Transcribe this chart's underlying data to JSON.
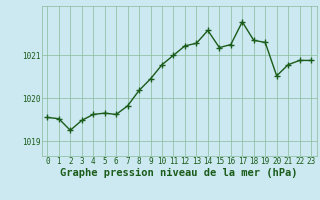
{
  "x": [
    0,
    1,
    2,
    3,
    4,
    5,
    6,
    7,
    8,
    9,
    10,
    11,
    12,
    13,
    14,
    15,
    16,
    17,
    18,
    19,
    20,
    21,
    22,
    23
  ],
  "y": [
    1019.55,
    1019.52,
    1019.25,
    1019.48,
    1019.62,
    1019.65,
    1019.62,
    1019.82,
    1020.18,
    1020.45,
    1020.78,
    1021.0,
    1021.22,
    1021.28,
    1021.58,
    1021.18,
    1021.25,
    1021.78,
    1021.35,
    1021.3,
    1020.52,
    1020.78,
    1020.88,
    1020.88
  ],
  "line_color": "#1a5c1a",
  "marker": "+",
  "marker_size": 4,
  "marker_linewidth": 1.0,
  "bg_color": "#cce8f0",
  "grid_color": "#88bb99",
  "ylabel_ticks": [
    1019,
    1020,
    1021
  ],
  "ylim": [
    1018.65,
    1022.15
  ],
  "xlim": [
    -0.5,
    23.5
  ],
  "xticks": [
    0,
    1,
    2,
    3,
    4,
    5,
    6,
    7,
    8,
    9,
    10,
    11,
    12,
    13,
    14,
    15,
    16,
    17,
    18,
    19,
    20,
    21,
    22,
    23
  ],
  "tick_fontsize": 5.5,
  "tick_color": "#1a5c1a",
  "title": "Graphe pression niveau de la mer (hPa)",
  "title_fontsize": 7.5,
  "title_color": "#1a5c1a",
  "line_width": 1.0
}
